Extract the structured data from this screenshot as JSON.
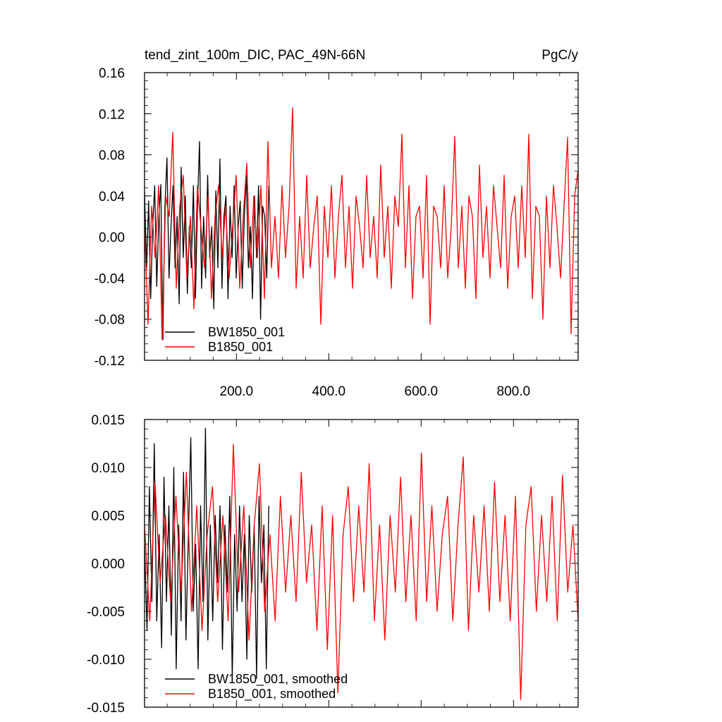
{
  "chart_data": [
    {
      "type": "line",
      "title_left": "tend_zint_100m_DIC, PAC_49N-66N",
      "title_right": "PgC/y",
      "xlabel": "",
      "ylabel": "",
      "xlim": [
        1,
        940
      ],
      "ylim": [
        -0.12,
        0.16
      ],
      "xticks": [
        200,
        400,
        600,
        800
      ],
      "xtick_labels": [
        "200.0",
        "400.0",
        "600.0",
        "800.0"
      ],
      "yticks": [
        -0.12,
        -0.08,
        -0.04,
        0.0,
        0.04,
        0.08,
        0.12,
        0.16
      ],
      "ytick_labels": [
        "-0.12",
        "-0.08",
        "-0.04",
        "0.00",
        "0.04",
        "0.08",
        "0.12",
        "0.16"
      ],
      "legend_position": "bottom-left",
      "series": [
        {
          "name": "BW1850_001",
          "color": "#000000",
          "x_range": [
            1,
            270
          ],
          "values": [
            0.044,
            -0.03,
            0.035,
            -0.06,
            0.012,
            0.05,
            -0.048,
            0.02,
            0.051,
            -0.1,
            0.03,
            0.077,
            -0.04,
            0.01,
            0.05,
            -0.03,
            0.02,
            -0.065,
            0.068,
            -0.02,
            0.04,
            -0.055,
            0.01,
            -0.03,
            0.05,
            -0.06,
            0.03,
            0.093,
            -0.05,
            0.02,
            -0.04,
            0.06,
            -0.02,
            0.01,
            -0.07,
            0.045,
            -0.03,
            0.076,
            -0.05,
            0.02,
            0.04,
            -0.06,
            0.03,
            -0.02,
            0.05,
            -0.04,
            0.01,
            0.035,
            -0.05,
            0.02,
            0.06,
            -0.03,
            0.01,
            -0.06,
            0.04,
            -0.02,
            0.05,
            -0.08,
            0.03,
            0.02,
            -0.04,
            0.05
          ]
        },
        {
          "name": "B1850_001",
          "color": "#ff0000",
          "x_range": [
            1,
            940
          ],
          "values": [
            0.01,
            -0.085,
            0.03,
            -0.02,
            0.05,
            -0.1,
            0.04,
            0.02,
            0.102,
            -0.05,
            0.03,
            0.06,
            -0.04,
            0.02,
            -0.07,
            0.05,
            0.01,
            -0.03,
            0.04,
            -0.06,
            0.02,
            0.05,
            -0.02,
            0.03,
            -0.04,
            0.01,
            0.06,
            -0.05,
            0.02,
            0.072,
            -0.03,
            0.04,
            -0.02,
            0.05,
            -0.06,
            0.093,
            -0.03,
            0.02,
            -0.04,
            0.05,
            -0.02,
            0.03,
            0.126,
            -0.05,
            0.02,
            -0.04,
            0.06,
            -0.03,
            0.01,
            0.04,
            -0.085,
            0.03,
            -0.02,
            0.05,
            -0.04,
            0.02,
            0.06,
            -0.03,
            0.03,
            -0.05,
            0.04,
            0.01,
            -0.03,
            0.06,
            -0.02,
            0.02,
            -0.04,
            0.07,
            -0.02,
            0.03,
            -0.05,
            0.04,
            0.01,
            0.1,
            -0.03,
            0.05,
            -0.06,
            0.02,
            0.03,
            -0.04,
            0.06,
            -0.085,
            0.03,
            0.02,
            -0.03,
            0.05,
            -0.04,
            0.01,
            0.098,
            -0.03,
            0.03,
            -0.05,
            0.04,
            0.02,
            -0.06,
            0.07,
            -0.02,
            0.03,
            -0.04,
            0.05,
            0.01,
            -0.03,
            0.06,
            -0.05,
            0.02,
            0.04,
            -0.03,
            0.05,
            -0.02,
            0.1,
            -0.06,
            0.03,
            0.02,
            -0.08,
            0.04,
            -0.03,
            0.05,
            0.01,
            -0.04,
            0.03,
            0.097,
            -0.094,
            0.04,
            0.065
          ]
        }
      ]
    },
    {
      "type": "line",
      "xlabel": "",
      "ylabel": "",
      "xlim": [
        1,
        940
      ],
      "ylim": [
        -0.015,
        0.015
      ],
      "xticks": [
        200,
        400,
        600,
        800
      ],
      "yticks": [
        -0.015,
        -0.01,
        -0.005,
        0.0,
        0.005,
        0.01,
        0.015
      ],
      "ytick_labels": [
        "-0.015",
        "-0.010",
        "-0.005",
        "0.000",
        "0.005",
        "0.010",
        "0.015"
      ],
      "legend_position": "bottom-left",
      "series": [
        {
          "name": "BW1850_001, smoothed",
          "color": "#000000",
          "x_range": [
            1,
            270
          ],
          "values": [
            0.002,
            -0.007,
            0.008,
            -0.004,
            0.0125,
            -0.006,
            0.003,
            -0.0088,
            0.009,
            -0.004,
            0.006,
            -0.0075,
            0.01,
            -0.011,
            0.004,
            -0.006,
            0.0095,
            -0.008,
            0.003,
            0.0131,
            -0.005,
            0.002,
            -0.011,
            0.006,
            -0.004,
            0.0141,
            -0.008,
            0.004,
            -0.006,
            0.005,
            -0.002,
            0.006,
            -0.009,
            0.004,
            -0.003,
            0.007,
            -0.012,
            0.003,
            -0.005,
            0.006,
            -0.004,
            0.003,
            -0.01,
            0.005,
            -0.003,
            0.004,
            -0.012,
            0.007,
            -0.002,
            0.004,
            -0.011,
            0.006
          ]
        },
        {
          "name": "B1850_001, smoothed",
          "color": "#ff0000",
          "x_range": [
            1,
            940
          ],
          "values": [
            0.004,
            -0.006,
            0.0085,
            -0.002,
            0.005,
            -0.004,
            0.007,
            -0.003,
            0.0095,
            -0.005,
            0.006,
            -0.007,
            0.003,
            0.008,
            -0.004,
            0.005,
            -0.006,
            0.0124,
            -0.003,
            0.006,
            -0.008,
            0.004,
            0.0104,
            -0.005,
            0.003,
            -0.006,
            0.007,
            -0.003,
            0.005,
            -0.004,
            0.0095,
            -0.002,
            0.004,
            -0.007,
            0.006,
            -0.009,
            0.005,
            -0.0135,
            0.003,
            0.008,
            -0.004,
            0.006,
            -0.003,
            0.0104,
            -0.006,
            0.004,
            -0.008,
            0.005,
            -0.003,
            0.009,
            -0.004,
            0.005,
            -0.006,
            0.0115,
            -0.004,
            0.006,
            -0.005,
            0.003,
            0.007,
            -0.006,
            0.004,
            0.0111,
            -0.007,
            0.005,
            -0.003,
            0.006,
            -0.005,
            0.0085,
            -0.004,
            0.005,
            -0.006,
            0.007,
            -0.0142,
            0.004,
            0.008,
            -0.005,
            0.005,
            -0.004,
            0.007,
            -0.006,
            0.0092,
            -0.003,
            0.004,
            -0.006
          ]
        }
      ]
    }
  ]
}
